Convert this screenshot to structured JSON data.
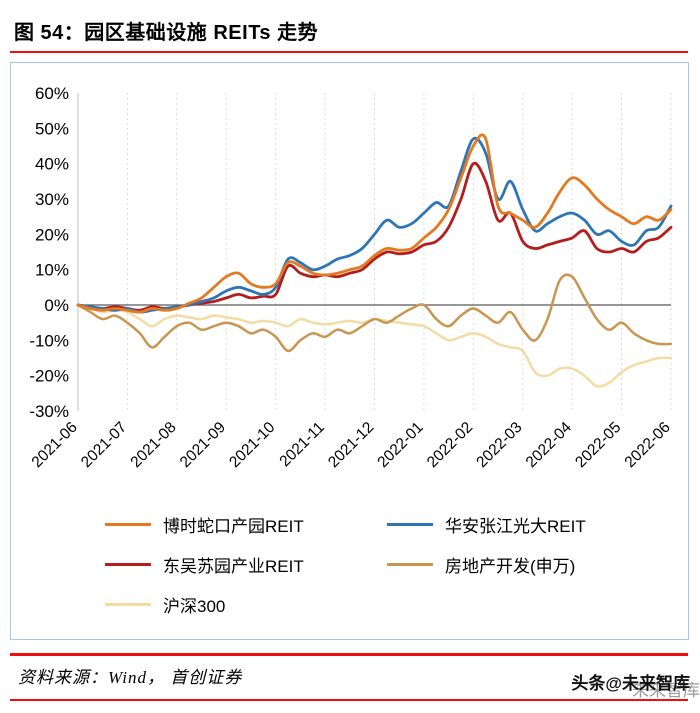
{
  "header": {
    "title": "图 54：园区基础设施 REITs 走势"
  },
  "footer": {
    "source": "资料来源：Wind， 首创证券",
    "watermark": "头条@未来智库",
    "watermark_echo": "未来智库"
  },
  "colors": {
    "rule_red": "#EE0E0E",
    "chart_border": "#A8C6E8",
    "zero_axis": "#595959",
    "gridline": "#DBDBDB"
  },
  "chart_data": {
    "type": "line",
    "title": "园区基础设施 REITs 走势",
    "x_labels": [
      "2021-06",
      "2021-07",
      "2021-08",
      "2021-09",
      "2021-10",
      "2021-11",
      "2021-12",
      "2022-01",
      "2022-02",
      "2022-03",
      "2022-04",
      "2022-05",
      "2022-06"
    ],
    "points_per_month": 4,
    "ylim": [
      -30,
      60
    ],
    "y_ticks": [
      60,
      50,
      40,
      30,
      20,
      10,
      0,
      -10,
      -20,
      -30
    ],
    "y_tick_labels": [
      "60%",
      "50%",
      "40%",
      "30%",
      "20%",
      "10%",
      "0%",
      "-10%",
      "-20%",
      "-30%"
    ],
    "unit": "percent",
    "grid": "vertical-dashed",
    "legend_position": "bottom",
    "series": [
      {
        "name": "博时蛇口产园REIT",
        "color": "#E4791F",
        "values": [
          0,
          -1,
          -1.5,
          -1,
          -1.5,
          -2,
          -1,
          -1.5,
          -1,
          0.5,
          2,
          5,
          8,
          9,
          6,
          5,
          6,
          12,
          11,
          9,
          8.5,
          9,
          10,
          11,
          14,
          16,
          15.5,
          16,
          19,
          22,
          27,
          36,
          45,
          47,
          28,
          26,
          24,
          22,
          26,
          32,
          36,
          34,
          30,
          27,
          25,
          23,
          25,
          24,
          27
        ]
      },
      {
        "name": "华安张江光大REIT",
        "color": "#2E75B6",
        "values": [
          0,
          -0.5,
          -1,
          -1.5,
          -1,
          -2,
          -1.5,
          -1,
          -0.5,
          0,
          1,
          2,
          4,
          5,
          4,
          3,
          5,
          13,
          12,
          10,
          11,
          13,
          14,
          16,
          20,
          24,
          22,
          23,
          26,
          29,
          28,
          38,
          47,
          43,
          30,
          35,
          27,
          21,
          23,
          25,
          26,
          24,
          20,
          21,
          18,
          17,
          21,
          22,
          28
        ]
      },
      {
        "name": "东吴苏园产业REIT",
        "color": "#B51D1D",
        "values": [
          0,
          -0.5,
          -1,
          -0.5,
          -1,
          -1.5,
          -0.5,
          -1,
          -0.5,
          0,
          0.5,
          1,
          2,
          3,
          2,
          2.5,
          3,
          11,
          9,
          8,
          8.5,
          8,
          9,
          10,
          13,
          15,
          14.5,
          15,
          17,
          18,
          22,
          30,
          40,
          35,
          24,
          26,
          18,
          16,
          17,
          18,
          19,
          21,
          16,
          15,
          16,
          15,
          18,
          19,
          22
        ]
      },
      {
        "name": "房地产开发(申万)",
        "color": "#C9954F",
        "values": [
          0,
          -2,
          -4,
          -3,
          -5,
          -8,
          -12,
          -9,
          -6,
          -5,
          -7,
          -6,
          -5,
          -6,
          -8,
          -7,
          -9,
          -13,
          -10,
          -8,
          -9,
          -7,
          -8,
          -6,
          -4,
          -5,
          -3,
          -1,
          0,
          -4,
          -6,
          -3,
          -1,
          -3,
          -5,
          -2,
          -7,
          -10,
          -4,
          7,
          8,
          2,
          -4,
          -7,
          -5,
          -8,
          -10,
          -11,
          -11
        ]
      },
      {
        "name": "沪深300",
        "color": "#F3DCA4",
        "values": [
          0,
          -1,
          -2,
          -1.5,
          -2,
          -4,
          -6,
          -4,
          -3,
          -3.5,
          -4,
          -3,
          -3.5,
          -4,
          -5,
          -4.5,
          -5,
          -6,
          -4,
          -5,
          -5.5,
          -5,
          -4.5,
          -5,
          -4,
          -4.5,
          -5,
          -5.5,
          -6,
          -8,
          -10,
          -9,
          -8,
          -9,
          -11,
          -12,
          -13,
          -19,
          -20,
          -18,
          -18,
          -20,
          -23,
          -22,
          -19,
          -17,
          -16,
          -15,
          -15
        ]
      }
    ]
  }
}
